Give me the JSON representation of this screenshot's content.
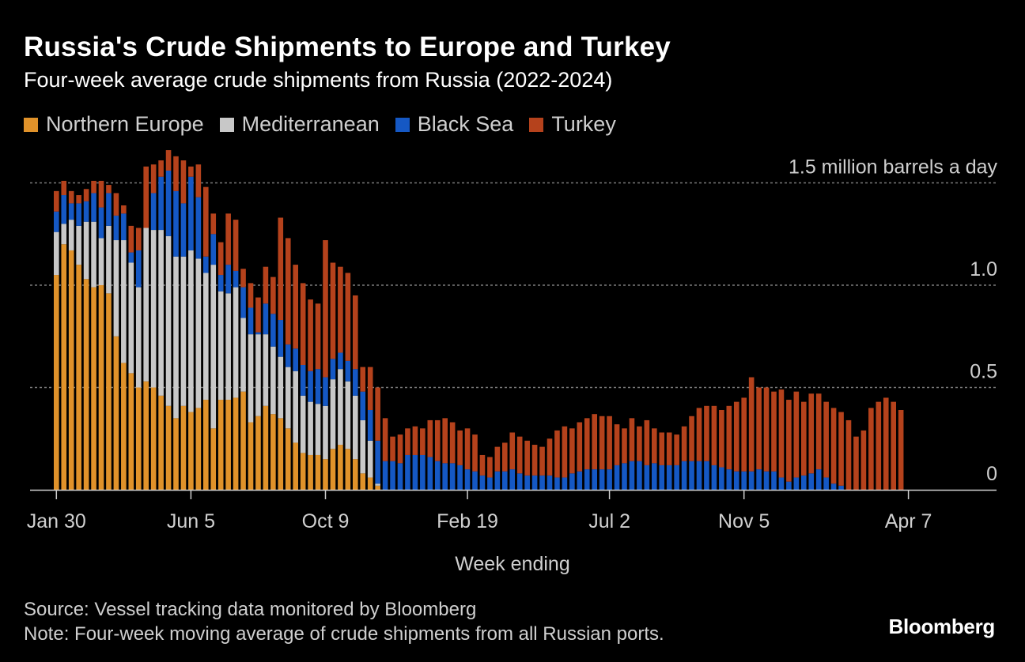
{
  "title": "Russia's Crude Shipments to Europe and Turkey",
  "subtitle": "Four-week average crude shipments from Russia (2022-2024)",
  "legend": [
    {
      "name": "Northern Europe",
      "color": "#e0922a"
    },
    {
      "name": "Mediterranean",
      "color": "#c8c8c8"
    },
    {
      "name": "Black Sea",
      "color": "#1558c4"
    },
    {
      "name": "Turkey",
      "color": "#b5421c"
    }
  ],
  "footer": {
    "source": "Source: Vessel tracking data monitored by Bloomberg",
    "note": "Note: Four-week moving average of crude shipments from all Russian ports.",
    "brand": "Bloomberg"
  },
  "chart_data": {
    "type": "bar",
    "stacked": true,
    "xlabel": "Week ending",
    "ylabel": "million barrels a day",
    "ylim": [
      0,
      1.5
    ],
    "yticks": [
      {
        "value": 0,
        "label": "0"
      },
      {
        "value": 0.5,
        "label": "0.5"
      },
      {
        "value": 1.0,
        "label": "1.0"
      },
      {
        "value": 1.5,
        "label": "1.5 million barrels a day"
      }
    ],
    "xticks": [
      {
        "index": 0,
        "label": "Jan 30"
      },
      {
        "index": 18,
        "label": "Jun 5"
      },
      {
        "index": 36,
        "label": "Oct 9"
      },
      {
        "index": 55,
        "label": "Feb 19"
      },
      {
        "index": 74,
        "label": "Jul 2"
      },
      {
        "index": 92,
        "label": "Nov 5"
      },
      {
        "index": 114,
        "label": "Apr 7"
      }
    ],
    "grid": true,
    "series": [
      {
        "name": "Northern Europe",
        "values": [
          1.05,
          1.2,
          1.17,
          1.1,
          1.03,
          0.99,
          1.0,
          0.96,
          0.75,
          0.62,
          0.57,
          0.5,
          0.53,
          0.5,
          0.46,
          0.41,
          0.35,
          0.41,
          0.38,
          0.4,
          0.44,
          0.3,
          0.44,
          0.44,
          0.45,
          0.48,
          0.33,
          0.36,
          0.41,
          0.37,
          0.35,
          0.3,
          0.23,
          0.18,
          0.17,
          0.17,
          0.15,
          0.2,
          0.22,
          0.2,
          0.15,
          0.08,
          0.06,
          0.02,
          0,
          0,
          0,
          0,
          0,
          0,
          0,
          0,
          0,
          0,
          0,
          0,
          0,
          0,
          0,
          0,
          0,
          0,
          0,
          0,
          0,
          0,
          0,
          0,
          0,
          0,
          0,
          0,
          0,
          0,
          0,
          0,
          0,
          0,
          0,
          0,
          0,
          0,
          0,
          0,
          0,
          0,
          0,
          0,
          0,
          0,
          0,
          0,
          0,
          0,
          0,
          0,
          0,
          0,
          0,
          0,
          0,
          0,
          0,
          0,
          0,
          0,
          0,
          0,
          0,
          0,
          0,
          0,
          0,
          0
        ]
      },
      {
        "name": "Mediterranean",
        "values": [
          0.21,
          0.1,
          0.15,
          0.19,
          0.28,
          0.32,
          0.23,
          0.33,
          0.47,
          0.6,
          0.54,
          0.49,
          0.75,
          0.77,
          0.81,
          0.83,
          0.79,
          0.73,
          0.79,
          0.73,
          0.62,
          0.8,
          0.53,
          0.52,
          0.54,
          0.36,
          0.43,
          0.4,
          0.35,
          0.33,
          0.3,
          0.3,
          0.35,
          0.28,
          0.26,
          0.25,
          0.26,
          0.34,
          0.37,
          0.33,
          0.31,
          0.26,
          0.18,
          0.01,
          0,
          0,
          0,
          0,
          0,
          0,
          0,
          0,
          0,
          0,
          0,
          0,
          0,
          0,
          0,
          0,
          0,
          0,
          0,
          0,
          0,
          0,
          0,
          0,
          0,
          0,
          0,
          0,
          0,
          0,
          0,
          0,
          0,
          0,
          0,
          0,
          0,
          0,
          0,
          0,
          0,
          0,
          0,
          0,
          0,
          0,
          0,
          0,
          0,
          0,
          0,
          0,
          0,
          0,
          0,
          0,
          0,
          0,
          0,
          0,
          0,
          0,
          0,
          0,
          0,
          0,
          0,
          0,
          0,
          0,
          0,
          0,
          0,
          0
        ]
      },
      {
        "name": "Black Sea",
        "values": [
          0.1,
          0.14,
          0.08,
          0.11,
          0.1,
          0.14,
          0.15,
          0.16,
          0.12,
          0.13,
          0.05,
          0.18,
          0.0,
          0.18,
          0.26,
          0.32,
          0.32,
          0.26,
          0.36,
          0.3,
          0.08,
          0.15,
          0.08,
          0.14,
          0.08,
          0.15,
          0.13,
          0.01,
          0.15,
          0.16,
          0.18,
          0.11,
          0.11,
          0.15,
          0.15,
          0.17,
          0.14,
          0.1,
          0.08,
          0.1,
          0.13,
          0.14,
          0.15,
          0.21,
          0.14,
          0.14,
          0.13,
          0.17,
          0.17,
          0.17,
          0.16,
          0.14,
          0.13,
          0.13,
          0.12,
          0.1,
          0.09,
          0.07,
          0.06,
          0.09,
          0.09,
          0.1,
          0.08,
          0.07,
          0.07,
          0.07,
          0.07,
          0.06,
          0.06,
          0.08,
          0.09,
          0.1,
          0.1,
          0.1,
          0.1,
          0.12,
          0.13,
          0.14,
          0.14,
          0.12,
          0.13,
          0.12,
          0.12,
          0.12,
          0.14,
          0.14,
          0.14,
          0.14,
          0.12,
          0.11,
          0.1,
          0.09,
          0.09,
          0.09,
          0.1,
          0.09,
          0.09,
          0.06,
          0.04,
          0.06,
          0.07,
          0.08,
          0.1,
          0.06,
          0.03,
          0.02,
          0,
          0,
          0,
          0,
          0,
          0,
          0,
          0,
          0,
          0,
          0,
          0
        ]
      },
      {
        "name": "Turkey",
        "values": [
          0.1,
          0.07,
          0.06,
          0.04,
          0.06,
          0.06,
          0.13,
          0.04,
          0.11,
          0.04,
          0.13,
          0.11,
          0.3,
          0.14,
          0.08,
          0.1,
          0.17,
          0.21,
          0.05,
          0.16,
          0.34,
          0.1,
          0.16,
          0.25,
          0.25,
          0.09,
          0.12,
          0.17,
          0.18,
          0.18,
          0.5,
          0.52,
          0.41,
          0.4,
          0.35,
          0.32,
          0.67,
          0.47,
          0.42,
          0.43,
          0.36,
          0.12,
          0.21,
          0.26,
          0.21,
          0.12,
          0.14,
          0.13,
          0.14,
          0.13,
          0.18,
          0.2,
          0.22,
          0.2,
          0.17,
          0.2,
          0.18,
          0.1,
          0.1,
          0.12,
          0.14,
          0.18,
          0.18,
          0.17,
          0.15,
          0.14,
          0.18,
          0.23,
          0.25,
          0.22,
          0.24,
          0.25,
          0.27,
          0.26,
          0.26,
          0.2,
          0.17,
          0.21,
          0.17,
          0.22,
          0.17,
          0.16,
          0.16,
          0.15,
          0.17,
          0.22,
          0.26,
          0.27,
          0.29,
          0.28,
          0.31,
          0.34,
          0.36,
          0.46,
          0.4,
          0.41,
          0.39,
          0.43,
          0.4,
          0.42,
          0.36,
          0.39,
          0.37,
          0.37,
          0.37,
          0.36,
          0.34,
          0.26,
          0.29,
          0.4,
          0.43,
          0.45,
          0.43,
          0.39,
          0.4,
          0.31
        ]
      }
    ]
  }
}
